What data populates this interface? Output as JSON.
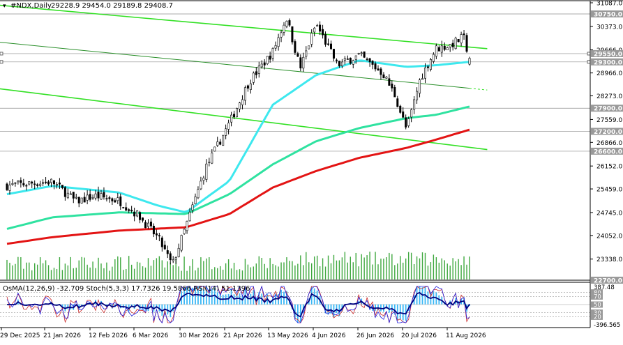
{
  "header": {
    "symbol_line": "#NDX,Daily",
    "ohlc": "29228.9 29454.0 29189.8 29408.7"
  },
  "price_axis": {
    "ticks": [
      "31087.0",
      "30373.0",
      "29666.0",
      "28966.0",
      "28273.0",
      "27559.0",
      "26866.0",
      "26152.0",
      "25459.0",
      "24745.0",
      "24052.0",
      "23338.0"
    ],
    "levels": [
      {
        "label": "30750.0",
        "value": 30750,
        "color": "#8c8c8c"
      },
      {
        "label": "29550.0",
        "value": 29550,
        "color": "#8c8c8c"
      },
      {
        "label": "29300.0",
        "value": 29300,
        "color": "#8c8c8c"
      },
      {
        "label": "27900.0",
        "value": 27900,
        "color": "#8c8c8c"
      },
      {
        "label": "27200.0",
        "value": 27200,
        "color": "#8c8c8c"
      },
      {
        "label": "26600.0",
        "value": 26600,
        "color": "#8c8c8c"
      },
      {
        "label": "22700.0",
        "value": 22700,
        "color": "#8c8c8c"
      }
    ]
  },
  "indicator_header": "OsMA(12,26,9) -32.709  Stoch(5,3,3) 17.7326 19.5866  RSI(14) 51.1396",
  "indicator_axis": {
    "ticks": [
      "387.48",
      "80",
      "70",
      "50",
      "30",
      "20",
      "-396.565"
    ]
  },
  "time_axis": {
    "labels": [
      "29 Dec 2025",
      "21 Jan 2026",
      "12 Feb 2026",
      "6 Mar 2026",
      "30 Mar 2026",
      "21 Apr 2026",
      "13 May 2026",
      "4 Jun 2026",
      "26 Jun 2026",
      "20 Jul 2026",
      "11 Aug 2026"
    ]
  },
  "colors": {
    "candles": "#000000",
    "ma_fast": "#3ee8ee",
    "ma_mid": "#2fe2a0",
    "ma_slow": "#e31414",
    "channel": "#33e025",
    "volume": "#3fa83f",
    "osma": "#3ab7f5",
    "stoch_main": "#1f1fe0",
    "stoch_signal": "#cc2a2a",
    "rsi": "#000080"
  },
  "chart_data": [
    {
      "type": "candlestick",
      "title": "#NDX,Daily",
      "x_range": [
        "2025-12-29",
        "2026-08-21"
      ],
      "y_range": [
        22700,
        31087
      ],
      "close_path": [
        [
          "2025-12-29",
          25560
        ],
        [
          "2026-01-09",
          25620
        ],
        [
          "2026-01-21",
          25680
        ],
        [
          "2026-02-02",
          25080
        ],
        [
          "2026-02-12",
          25250
        ],
        [
          "2026-02-24",
          25100
        ],
        [
          "2026-03-06",
          24650
        ],
        [
          "2026-03-16",
          23950
        ],
        [
          "2026-03-23",
          23150
        ],
        [
          "2026-03-30",
          24350
        ],
        [
          "2026-04-09",
          26100
        ],
        [
          "2026-04-21",
          27450
        ],
        [
          "2026-05-01",
          28700
        ],
        [
          "2026-05-13",
          29600
        ],
        [
          "2026-05-20",
          30650
        ],
        [
          "2026-05-27",
          29100
        ],
        [
          "2026-06-04",
          30450
        ],
        [
          "2026-06-15",
          29200
        ],
        [
          "2026-06-26",
          29500
        ],
        [
          "2026-07-08",
          28950
        ],
        [
          "2026-07-14",
          28300
        ],
        [
          "2026-07-20",
          27250
        ],
        [
          "2026-07-27",
          28800
        ],
        [
          "2026-08-04",
          29700
        ],
        [
          "2026-08-11",
          29800
        ],
        [
          "2026-08-18",
          30050
        ],
        [
          "2026-08-21",
          29408.7
        ]
      ],
      "last_bar": {
        "open": 29228.9,
        "high": 29454.0,
        "low": 29189.8,
        "close": 29408.7
      },
      "moving_averages": [
        {
          "role": "fast",
          "points": [
            [
              "2025-12-29",
              25300
            ],
            [
              "2026-01-21",
              25550
            ],
            [
              "2026-02-24",
              25350
            ],
            [
              "2026-03-16",
              24950
            ],
            [
              "2026-03-30",
              24750
            ],
            [
              "2026-04-21",
              25700
            ],
            [
              "2026-05-13",
              28000
            ],
            [
              "2026-06-04",
              28900
            ],
            [
              "2026-06-26",
              29350
            ],
            [
              "2026-07-20",
              29150
            ],
            [
              "2026-08-04",
              29200
            ],
            [
              "2026-08-21",
              29300
            ]
          ]
        },
        {
          "role": "medium",
          "points": [
            [
              "2025-12-29",
              24250
            ],
            [
              "2026-01-21",
              24600
            ],
            [
              "2026-02-24",
              24750
            ],
            [
              "2026-03-30",
              24700
            ],
            [
              "2026-04-21",
              25300
            ],
            [
              "2026-05-13",
              26200
            ],
            [
              "2026-06-04",
              26900
            ],
            [
              "2026-06-26",
              27300
            ],
            [
              "2026-07-20",
              27600
            ],
            [
              "2026-08-04",
              27700
            ],
            [
              "2026-08-21",
              27950
            ]
          ]
        },
        {
          "role": "slow",
          "points": [
            [
              "2025-12-29",
              23800
            ],
            [
              "2026-01-21",
              24000
            ],
            [
              "2026-02-24",
              24200
            ],
            [
              "2026-03-30",
              24300
            ],
            [
              "2026-04-21",
              24700
            ],
            [
              "2026-05-13",
              25500
            ],
            [
              "2026-06-04",
              26000
            ],
            [
              "2026-06-26",
              26400
            ],
            [
              "2026-07-20",
              26700
            ],
            [
              "2026-08-04",
              26950
            ],
            [
              "2026-08-21",
              27250
            ]
          ]
        }
      ],
      "channel_lines": [
        {
          "points": [
            [
              "2025-11-20",
              31200
            ],
            [
              "2026-08-30",
              29700
            ]
          ]
        },
        {
          "points": [
            [
              "2025-11-20",
              30100
            ],
            [
              "2026-08-30",
              28450
            ]
          ],
          "dashed_from": "2026-08-21"
        },
        {
          "points": [
            [
              "2025-11-20",
              28750
            ],
            [
              "2026-08-30",
              26650
            ]
          ]
        }
      ]
    },
    {
      "type": "oscillator",
      "title": "OsMA(12,26,9) -32.709  Stoch(5,3,3) 17.7326 19.5866  RSI(14) 51.1396",
      "osma_last": -32.709,
      "stoch_main_last": 17.7326,
      "stoch_signal_last": 19.5866,
      "rsi_last": 51.1396,
      "osma_range": [
        -396.565,
        387.48
      ],
      "levels": [
        80,
        70,
        50,
        30,
        20
      ]
    }
  ]
}
